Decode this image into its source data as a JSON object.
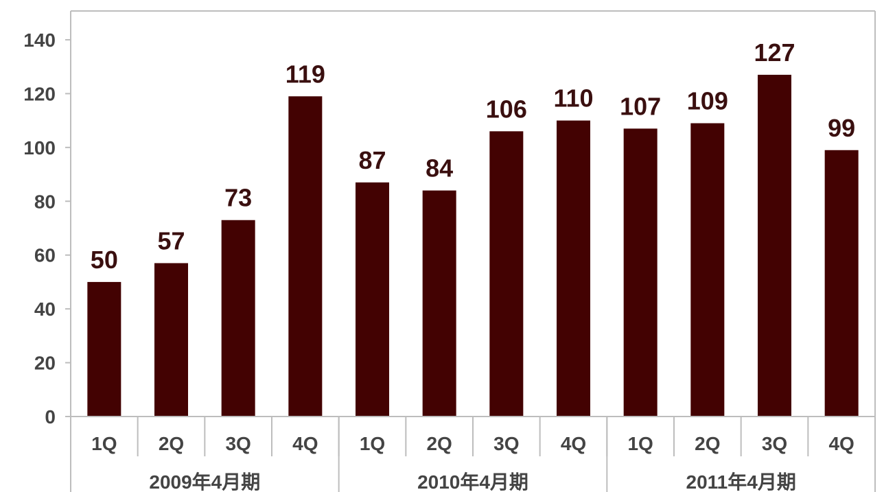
{
  "chart_data": {
    "type": "bar",
    "title": "",
    "xlabel": "",
    "ylabel": "",
    "ylim": [
      0,
      140
    ],
    "yticks": [
      0,
      20,
      40,
      60,
      80,
      100,
      120,
      140
    ],
    "grid": false,
    "bar_color": "#430202",
    "categories": [
      "1Q",
      "2Q",
      "3Q",
      "4Q",
      "1Q",
      "2Q",
      "3Q",
      "4Q",
      "1Q",
      "2Q",
      "3Q",
      "4Q"
    ],
    "groups": [
      {
        "label": "2009年4月期",
        "size": 4
      },
      {
        "label": "2010年4月期",
        "size": 4
      },
      {
        "label": "2011年4月期",
        "size": 4
      }
    ],
    "values": [
      50,
      57,
      73,
      119,
      87,
      84,
      106,
      110,
      107,
      109,
      127,
      99
    ]
  }
}
